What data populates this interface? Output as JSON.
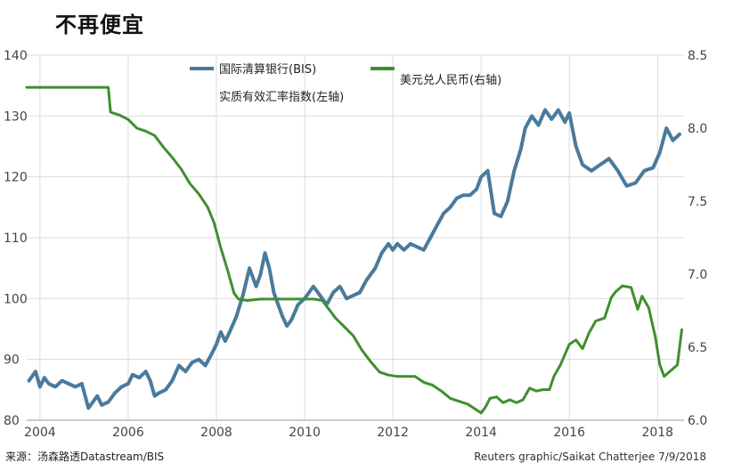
{
  "title": "不再便宜",
  "source": "来源：汤森路透Datastream/BIS",
  "credit": "Reuters graphic/Saikat Chatterjee 7/9/2018",
  "colors": {
    "left_series": "#4a7a9c",
    "right_series": "#3f8f2e",
    "grid": "#dcdcdc"
  },
  "chart_data": {
    "type": "line",
    "title": "不再便宜",
    "xlim": [
      2003.7,
      2018.6
    ],
    "x_ticks": [
      2004,
      2006,
      2008,
      2010,
      2012,
      2014,
      2016,
      2018
    ],
    "y_left": {
      "lim": [
        80,
        140
      ],
      "ticks": [
        80,
        90,
        100,
        110,
        120,
        130,
        140
      ]
    },
    "y_right": {
      "lim": [
        6.0,
        8.5
      ],
      "ticks": [
        "6.0",
        "6.5",
        "7.0",
        "7.5",
        "8.0",
        "8.5"
      ]
    },
    "grid": true,
    "legend_position": "top",
    "series": [
      {
        "name": "国际清算银行(BIS)",
        "name_line2": "实质有效汇率指数(左轴)",
        "axis": "left",
        "x": [
          2003.75,
          2003.9,
          2004.0,
          2004.1,
          2004.2,
          2004.35,
          2004.5,
          2004.65,
          2004.8,
          2004.95,
          2005.1,
          2005.2,
          2005.3,
          2005.4,
          2005.55,
          2005.7,
          2005.85,
          2006.0,
          2006.1,
          2006.25,
          2006.4,
          2006.5,
          2006.6,
          2006.7,
          2006.85,
          2007.0,
          2007.15,
          2007.3,
          2007.45,
          2007.6,
          2007.75,
          2007.9,
          2008.0,
          2008.1,
          2008.2,
          2008.3,
          2008.45,
          2008.6,
          2008.75,
          2008.9,
          2009.0,
          2009.1,
          2009.2,
          2009.3,
          2009.4,
          2009.5,
          2009.6,
          2009.7,
          2009.85,
          2010.0,
          2010.1,
          2010.2,
          2010.35,
          2010.5,
          2010.65,
          2010.8,
          2010.95,
          2011.1,
          2011.25,
          2011.4,
          2011.6,
          2011.75,
          2011.9,
          2012.0,
          2012.1,
          2012.25,
          2012.4,
          2012.55,
          2012.7,
          2012.85,
          2013.0,
          2013.15,
          2013.3,
          2013.45,
          2013.6,
          2013.75,
          2013.9,
          2014.0,
          2014.15,
          2014.3,
          2014.45,
          2014.6,
          2014.75,
          2014.9,
          2015.0,
          2015.15,
          2015.3,
          2015.45,
          2015.6,
          2015.75,
          2015.9,
          2016.0,
          2016.15,
          2016.3,
          2016.5,
          2016.7,
          2016.9,
          2017.1,
          2017.3,
          2017.5,
          2017.7,
          2017.9,
          2018.05,
          2018.2,
          2018.35,
          2018.5
        ],
        "values": [
          86.5,
          88,
          85.5,
          87,
          86,
          85.5,
          86.5,
          86,
          85.5,
          86,
          82,
          83,
          84,
          82.5,
          83,
          84.5,
          85.5,
          86,
          87.5,
          87,
          88,
          86.5,
          84,
          84.5,
          85,
          86.5,
          89,
          88,
          89.5,
          90,
          89,
          91,
          92.5,
          94.5,
          93,
          94.5,
          97,
          100.5,
          105,
          102,
          104,
          107.5,
          105,
          101,
          99,
          97,
          95.5,
          96.5,
          99,
          100,
          101,
          102,
          100.5,
          99,
          101,
          102,
          100,
          100.5,
          101,
          103,
          105,
          107.5,
          109,
          108,
          109,
          108,
          109,
          108.5,
          108,
          110,
          112,
          114,
          115,
          116.5,
          117,
          117,
          118,
          120,
          121,
          114,
          113.5,
          116,
          121,
          124.5,
          128,
          130,
          128.5,
          131,
          129.5,
          131,
          129,
          130.5,
          125,
          122,
          121,
          122,
          123,
          121,
          118.5,
          119,
          121,
          121.5,
          124,
          128,
          126,
          127
        ]
      },
      {
        "name": "美元兑人民币(右轴)",
        "axis": "right",
        "x": [
          2003.7,
          2005.55,
          2005.6,
          2005.8,
          2006.0,
          2006.2,
          2006.4,
          2006.6,
          2006.8,
          2007.0,
          2007.2,
          2007.4,
          2007.6,
          2007.8,
          2007.95,
          2008.1,
          2008.25,
          2008.4,
          2008.5,
          2008.7,
          2009.0,
          2009.3,
          2009.6,
          2009.9,
          2010.2,
          2010.4,
          2010.5,
          2010.6,
          2010.7,
          2010.9,
          2011.1,
          2011.3,
          2011.5,
          2011.7,
          2011.9,
          2012.1,
          2012.3,
          2012.5,
          2012.7,
          2012.9,
          2013.1,
          2013.3,
          2013.5,
          2013.7,
          2013.9,
          2014.0,
          2014.1,
          2014.2,
          2014.35,
          2014.5,
          2014.65,
          2014.8,
          2014.95,
          2015.1,
          2015.25,
          2015.4,
          2015.55,
          2015.65,
          2015.8,
          2016.0,
          2016.15,
          2016.3,
          2016.45,
          2016.6,
          2016.8,
          2016.95,
          2017.05,
          2017.2,
          2017.4,
          2017.55,
          2017.65,
          2017.8,
          2017.95,
          2018.05,
          2018.15,
          2018.3,
          2018.45,
          2018.55
        ],
        "values": [
          8.28,
          8.28,
          8.11,
          8.09,
          8.06,
          8.0,
          7.98,
          7.95,
          7.87,
          7.8,
          7.72,
          7.62,
          7.55,
          7.46,
          7.35,
          7.18,
          7.03,
          6.87,
          6.83,
          6.82,
          6.83,
          6.83,
          6.83,
          6.83,
          6.83,
          6.82,
          6.78,
          6.74,
          6.7,
          6.64,
          6.58,
          6.48,
          6.4,
          6.33,
          6.31,
          6.3,
          6.3,
          6.3,
          6.26,
          6.24,
          6.2,
          6.15,
          6.13,
          6.11,
          6.07,
          6.05,
          6.09,
          6.15,
          6.16,
          6.12,
          6.14,
          6.12,
          6.14,
          6.22,
          6.2,
          6.21,
          6.21,
          6.3,
          6.38,
          6.52,
          6.55,
          6.49,
          6.6,
          6.68,
          6.7,
          6.84,
          6.88,
          6.92,
          6.91,
          6.76,
          6.85,
          6.77,
          6.57,
          6.38,
          6.3,
          6.34,
          6.38,
          6.62
        ]
      }
    ]
  }
}
